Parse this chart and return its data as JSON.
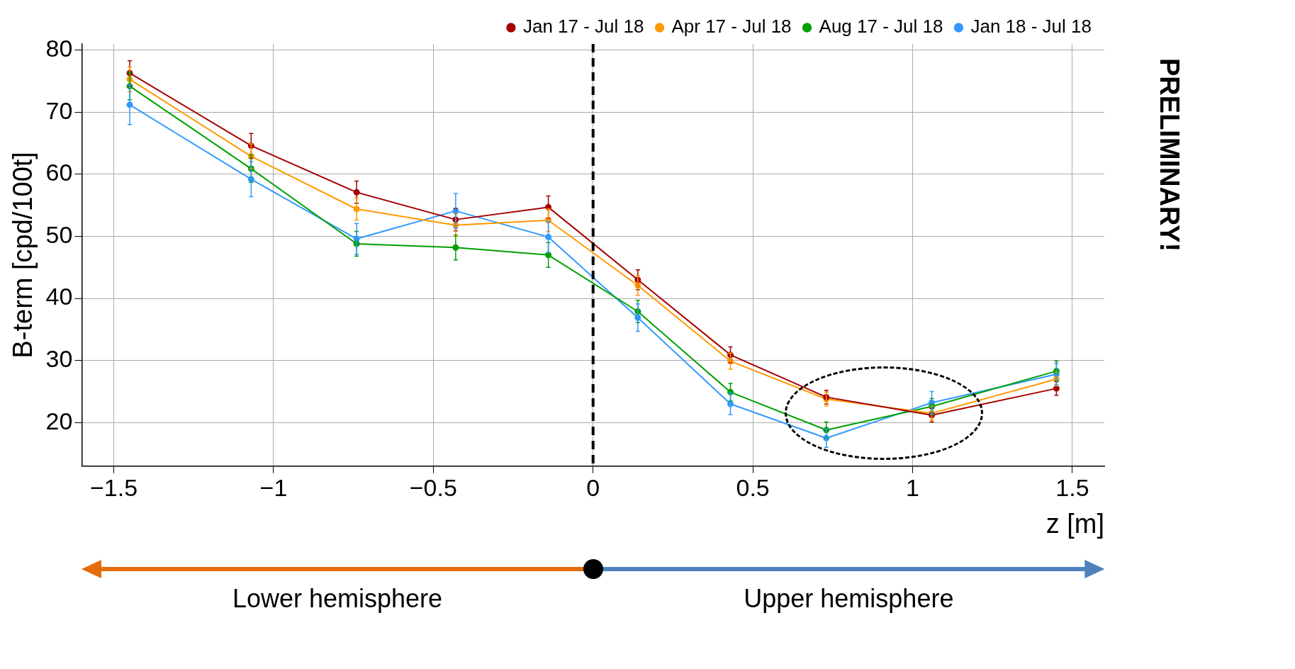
{
  "chart_data": {
    "type": "line",
    "xlabel": "z [m]",
    "ylabel": "B-term [cpd/100t]",
    "x": [
      -1.45,
      -1.07,
      -0.74,
      -0.43,
      -0.14,
      0.14,
      0.43,
      0.73,
      1.06,
      1.45
    ],
    "series": [
      {
        "name": "Jan 17 - Jul 18",
        "color": "#a50000",
        "values": [
          76.3,
          64.6,
          57.1,
          52.7,
          54.7,
          43.0,
          30.9,
          24.1,
          21.2,
          25.5
        ],
        "errors": [
          2,
          2,
          1.8,
          1.8,
          1.8,
          1.6,
          1.3,
          1.1,
          1.1,
          1.1
        ]
      },
      {
        "name": "Apr 17 - Jul 18",
        "color": "#ff9900",
        "values": [
          75.3,
          62.9,
          54.4,
          51.8,
          52.6,
          42.1,
          29.9,
          23.8,
          21.5,
          27.0
        ],
        "errors": [
          2,
          2,
          1.8,
          1.8,
          1.8,
          1.6,
          1.3,
          1.1,
          1.1,
          1.1
        ]
      },
      {
        "name": "Aug 17 - Jul 18",
        "color": "#00a000",
        "values": [
          74.2,
          60.9,
          48.8,
          48.2,
          47.0,
          37.9,
          24.9,
          18.8,
          22.6,
          28.3
        ],
        "errors": [
          2.2,
          2.2,
          2,
          2,
          2,
          1.8,
          1.4,
          1.3,
          1.3,
          1.6
        ]
      },
      {
        "name": "Jan 18 - Jul 18",
        "color": "#3399ff",
        "values": [
          71.2,
          59.2,
          49.6,
          54.1,
          49.9,
          36.9,
          23.0,
          17.5,
          23.2,
          27.8
        ],
        "errors": [
          3.2,
          2.8,
          2.5,
          2.8,
          2.5,
          2.2,
          1.7,
          1.5,
          1.8,
          1.7
        ]
      }
    ],
    "xlim": [
      -1.6,
      1.6
    ],
    "ylim": [
      13,
      81
    ],
    "xticks": [
      {
        "value": -1.5,
        "label": "−1.5"
      },
      {
        "value": -1,
        "label": "−1"
      },
      {
        "value": -0.5,
        "label": "−0.5"
      },
      0,
      0.5,
      1,
      1.5
    ],
    "yticks": [
      20,
      30,
      40,
      50,
      60,
      70,
      80
    ],
    "grid": true,
    "legend": "top right",
    "marker": "circle",
    "line_style": "solid",
    "ref_lines": [
      {
        "axis": "x",
        "value": 0,
        "color": "#000000",
        "line_style": "dashed"
      }
    ],
    "annotations": [
      "PRELIMINARY!",
      "Lower hemisphere",
      "Upper hemisphere"
    ]
  }
}
